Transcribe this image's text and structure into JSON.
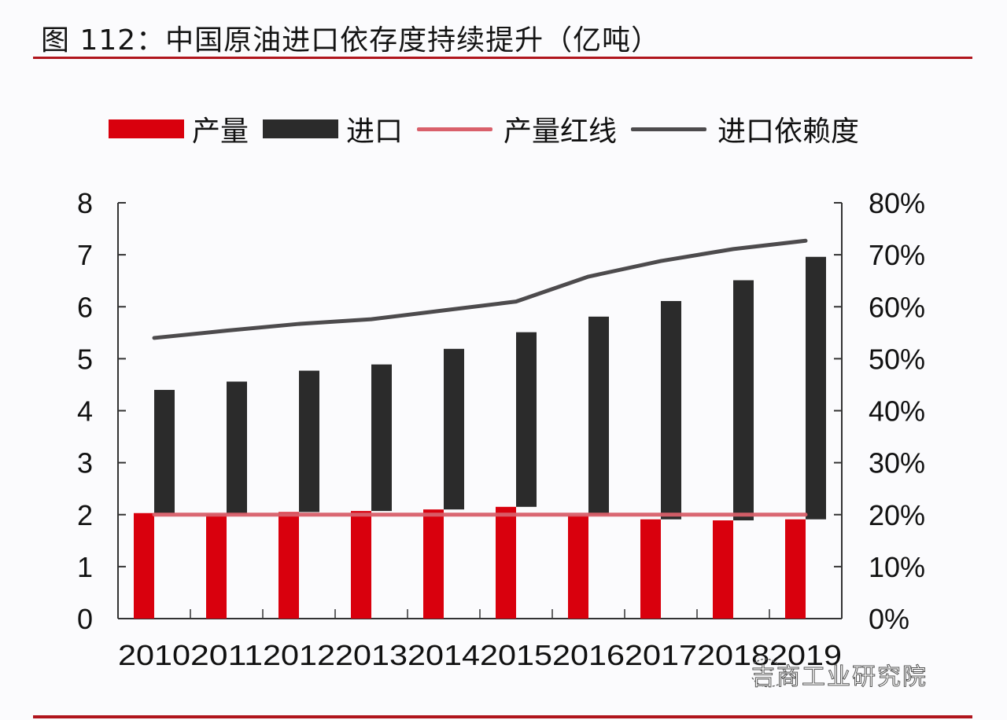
{
  "header": {
    "title": "图 112：中国原油进口依存度持续提升（亿吨）"
  },
  "legend": [
    {
      "label": "产量",
      "type": "bar",
      "color": "#d9000d"
    },
    {
      "label": "进口",
      "type": "bar",
      "color": "#2b2b2b"
    },
    {
      "label": "产量红线",
      "type": "line",
      "color": "#d9606b"
    },
    {
      "label": "进口依赖度",
      "type": "line",
      "color": "#4d4b4d"
    }
  ],
  "axes": {
    "left_ticks": [
      "0",
      "1",
      "2",
      "3",
      "4",
      "5",
      "6",
      "7",
      "8"
    ],
    "right_ticks": [
      "0%",
      "10%",
      "20%",
      "30%",
      "40%",
      "50%",
      "60%",
      "70%",
      "80%"
    ]
  },
  "watermark": "吉商工业研究院",
  "chart_data": {
    "type": "bar",
    "title": "图 112：中国原油进口依存度持续提升（亿吨）",
    "xlabel": "",
    "ylabel": "亿吨",
    "y2label": "进口依赖度",
    "categories": [
      "2010",
      "2011",
      "2012",
      "2013",
      "2014",
      "2015",
      "2016",
      "2017",
      "2018",
      "2019"
    ],
    "ylim": [
      0,
      8
    ],
    "y2lim": [
      0,
      0.8
    ],
    "grid": false,
    "legend_position": "top",
    "stacked": true,
    "series": [
      {
        "name": "产量",
        "type": "bar",
        "axis": "left",
        "color": "#d9000d",
        "values": [
          2.03,
          2.01,
          2.05,
          2.07,
          2.1,
          2.15,
          1.99,
          1.91,
          1.89,
          1.91
        ]
      },
      {
        "name": "进口",
        "type": "bar",
        "axis": "left",
        "stacked_on": "产量",
        "color": "#2b2b2b",
        "values": [
          2.37,
          2.55,
          2.72,
          2.82,
          3.09,
          3.36,
          3.82,
          4.2,
          4.62,
          5.05
        ]
      },
      {
        "name": "产量红线",
        "type": "line",
        "axis": "left",
        "color": "#d9606b",
        "values": [
          2.0,
          2.0,
          2.0,
          2.0,
          2.0,
          2.0,
          2.0,
          2.0,
          2.0,
          2.0
        ]
      },
      {
        "name": "进口依赖度",
        "type": "line",
        "axis": "right",
        "color": "#4d4b4d",
        "values": [
          0.54,
          0.554,
          0.567,
          0.576,
          0.593,
          0.61,
          0.658,
          0.688,
          0.711,
          0.727
        ]
      }
    ]
  }
}
